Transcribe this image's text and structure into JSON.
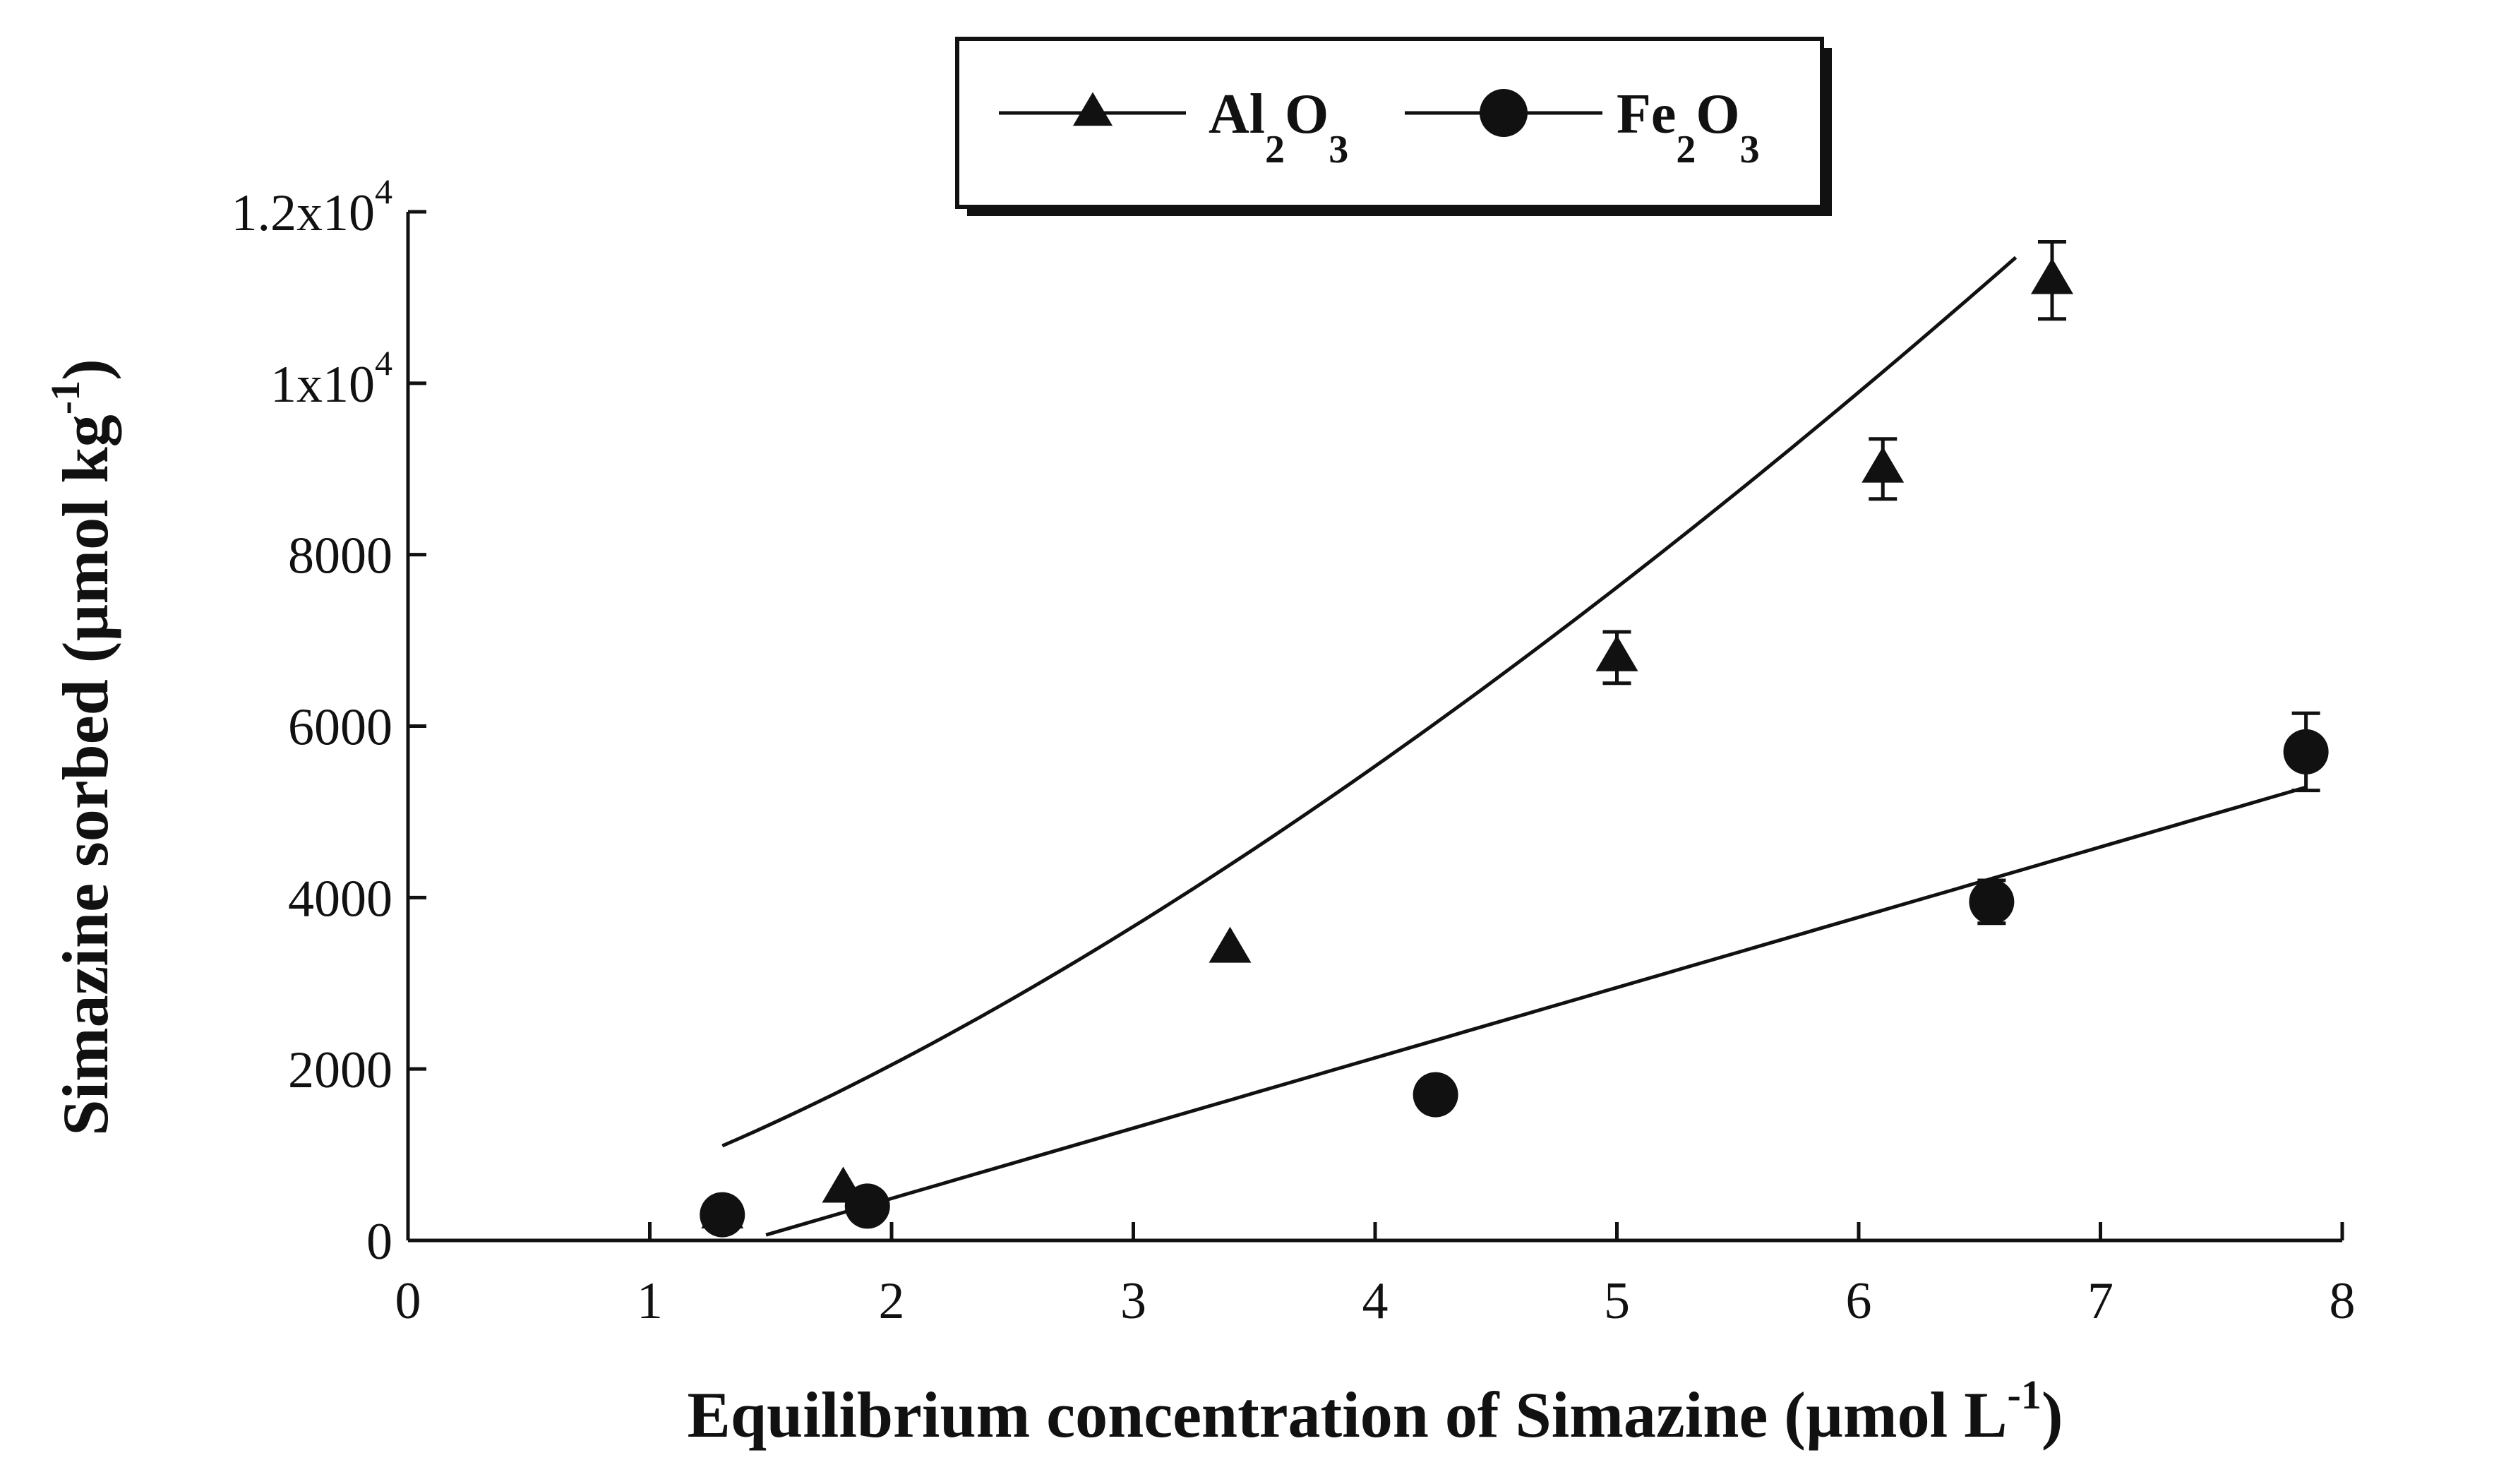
{
  "chart_data": {
    "type": "scatter",
    "xlabel": "Equilibrium concentration of Simazine (µmol L",
    "xlabel_sup": "-1",
    "xlabel_close": ")",
    "ylabel": "Simazine sorbed (µmol kg",
    "ylabel_sup": "-1",
    "ylabel_close": ")",
    "xlim": [
      0,
      8
    ],
    "ylim": [
      0,
      12000
    ],
    "x_ticks": [
      {
        "value": 0,
        "label": "0"
      },
      {
        "value": 1,
        "label": "1"
      },
      {
        "value": 2,
        "label": "2"
      },
      {
        "value": 3,
        "label": "3"
      },
      {
        "value": 4,
        "label": "4"
      },
      {
        "value": 5,
        "label": "5"
      },
      {
        "value": 6,
        "label": "6"
      },
      {
        "value": 7,
        "label": "7"
      },
      {
        "value": 8,
        "label": "8"
      }
    ],
    "y_ticks": [
      {
        "value": 0,
        "label": "0"
      },
      {
        "value": 2000,
        "label": "2000"
      },
      {
        "value": 4000,
        "label": "4000"
      },
      {
        "value": 6000,
        "label": "6000"
      },
      {
        "value": 8000,
        "label": "8000"
      },
      {
        "value": 10000,
        "label": "1x10",
        "sup": "4"
      },
      {
        "value": 12000,
        "label": "1.2x10",
        "sup": "4"
      }
    ],
    "grid": false,
    "legend_position": "top",
    "series": [
      {
        "name": "Al2O3",
        "legend_main1": "Al",
        "legend_sub1": "2",
        "legend_main2": "O",
        "legend_sub2": "3",
        "marker": "triangle",
        "points": [
          {
            "x": 1.3,
            "y": 300,
            "err": 0
          },
          {
            "x": 1.8,
            "y": 600,
            "err": 0
          },
          {
            "x": 3.4,
            "y": 3400,
            "err": 0
          },
          {
            "x": 5.0,
            "y": 6800,
            "err": 300
          },
          {
            "x": 6.1,
            "y": 9000,
            "err": 350
          },
          {
            "x": 6.8,
            "y": 11200,
            "err": 450
          }
        ],
        "fit": {
          "kind": "freundlich",
          "x_from": 1.3,
          "x_to": 6.65,
          "k": 757.8,
          "n": 1.434
        }
      },
      {
        "name": "Fe2O3",
        "legend_main1": "Fe",
        "legend_sub1": "2",
        "legend_main2": "O",
        "legend_sub2": "3",
        "marker": "circle",
        "points": [
          {
            "x": 1.3,
            "y": 300,
            "err": 0
          },
          {
            "x": 1.9,
            "y": 400,
            "err": 0
          },
          {
            "x": 4.25,
            "y": 1700,
            "err": 0
          },
          {
            "x": 6.55,
            "y": 3950,
            "err": 250
          },
          {
            "x": 7.85,
            "y": 5700,
            "err": 450
          }
        ],
        "fit": {
          "kind": "linear",
          "x_from": 1.4,
          "x_to": 7.85,
          "slope": 820,
          "intercept": -1150
        }
      }
    ]
  }
}
